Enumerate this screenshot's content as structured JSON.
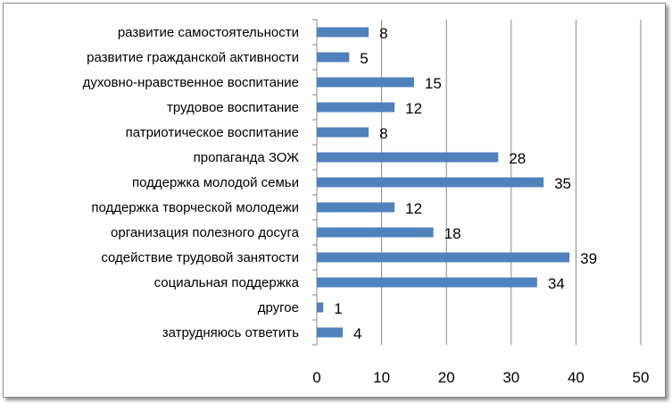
{
  "chart_data": {
    "type": "bar",
    "orientation": "horizontal",
    "categories": [
      "развитие самостоятельности",
      "развитие гражданской активности",
      "духовно-нравственное воспитание",
      "трудовое воспитание",
      "патриотическое воспитание",
      "пропаганда ЗОЖ",
      "поддержка молодой семьи",
      "поддержка творческой молодежи",
      "организация полезного досуга",
      "содействие трудовой занятости",
      "социальная поддержка",
      "другое",
      "затрудняюсь ответить"
    ],
    "values": [
      8,
      5,
      15,
      12,
      8,
      28,
      35,
      12,
      18,
      39,
      34,
      1,
      4
    ],
    "xlim": [
      0,
      50
    ],
    "xticks": [
      0,
      10,
      20,
      30,
      40,
      50
    ],
    "grid": "vertical",
    "legend": "none",
    "bar_color": "#4f81bd",
    "gridline_color": "#888888"
  }
}
